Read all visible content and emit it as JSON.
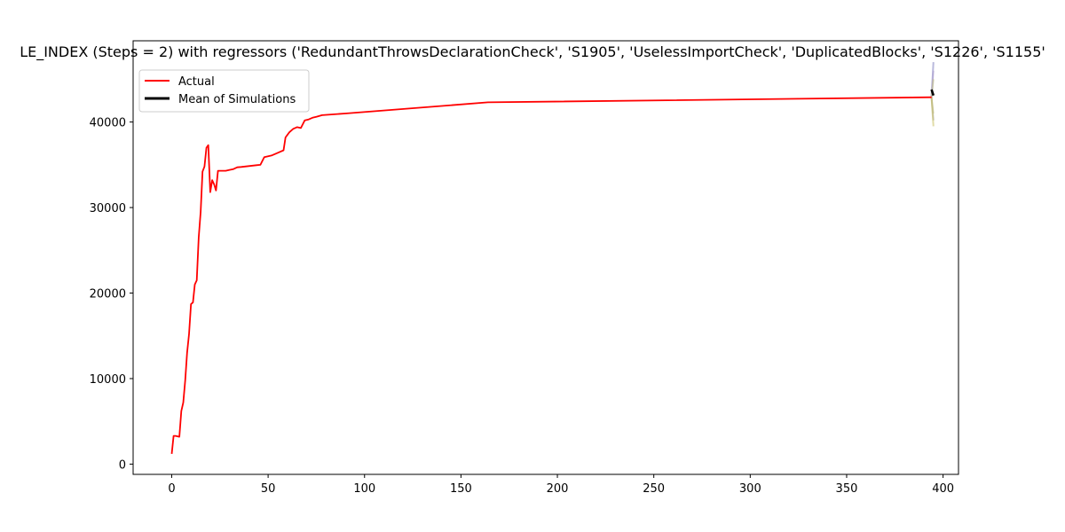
{
  "chart_data": {
    "type": "line",
    "title": "LE_INDEX (Steps = 2) with regressors ('RedundantThrowsDeclarationCheck', 'S1905', 'UselessImportCheck', 'DuplicatedBlocks', 'S1226', 'S1155'",
    "xlabel": "",
    "ylabel": "",
    "xlim": [
      -20,
      408
    ],
    "ylim": [
      -1200,
      49500
    ],
    "x_ticks": [
      0,
      50,
      100,
      150,
      200,
      250,
      300,
      350,
      400
    ],
    "y_ticks": [
      0,
      10000,
      20000,
      30000,
      40000
    ],
    "grid": false,
    "legend_position": "top-left",
    "legend": [
      {
        "label": "Actual",
        "color": "#ff0000"
      },
      {
        "label": "Mean of Simulations",
        "color": "#000000"
      }
    ],
    "series": [
      {
        "name": "Actual",
        "color": "#ff0000",
        "x": [
          0,
          1,
          2,
          4,
          5,
          6,
          7,
          8,
          9,
          10,
          11,
          12,
          13,
          14,
          15,
          16,
          17,
          18,
          19,
          20,
          21,
          22,
          23,
          24,
          26,
          28,
          30,
          32,
          34,
          36,
          38,
          40,
          42,
          44,
          46,
          48,
          50,
          52,
          54,
          56,
          58,
          59,
          61,
          63,
          65,
          67,
          69,
          71,
          73,
          75,
          78,
          90,
          164,
          394
        ],
        "y": [
          1200,
          3300,
          3300,
          3200,
          6200,
          7200,
          9800,
          13000,
          15200,
          18700,
          18900,
          21000,
          21500,
          26500,
          29500,
          34200,
          34800,
          37000,
          37300,
          31800,
          33200,
          32700,
          32000,
          34300,
          34300,
          34300,
          34400,
          34500,
          34700,
          34750,
          34800,
          34850,
          34900,
          34950,
          35000,
          35900,
          36000,
          36100,
          36300,
          36500,
          36700,
          38200,
          38800,
          39200,
          39400,
          39300,
          40200,
          40300,
          40500,
          40600,
          40800,
          41000,
          42300,
          42900
        ]
      },
      {
        "name": "Mean of Simulations",
        "color": "#000000",
        "x": [
          394,
          395
        ],
        "y": [
          43800,
          43100
        ]
      }
    ],
    "simulation_colors": [
      "#8080c0",
      "#b0a0d0",
      "#c0c080",
      "#d0d090",
      "#a0a0a0",
      "#c8c060"
    ]
  }
}
